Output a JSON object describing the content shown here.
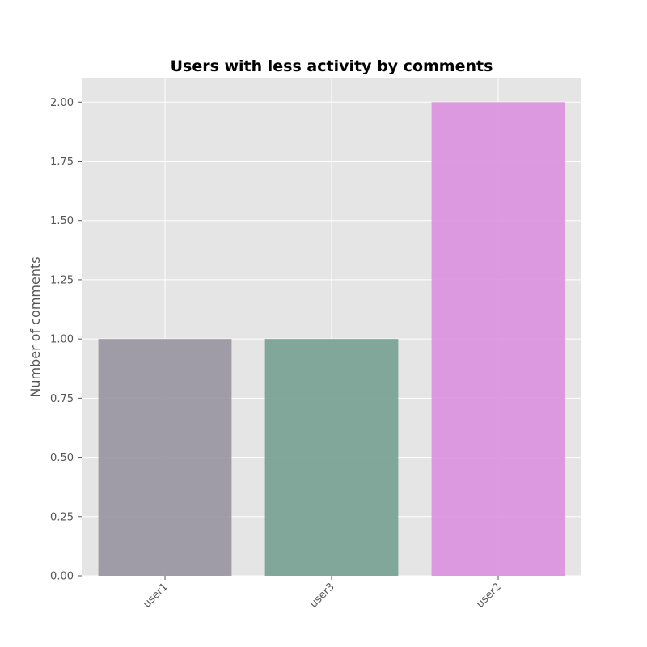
{
  "chart_data": {
    "type": "bar",
    "title": "Users with less activity by comments",
    "xlabel": "",
    "ylabel": "Number of comments",
    "categories": [
      "user1",
      "user3",
      "user2"
    ],
    "values": [
      1,
      1,
      2
    ],
    "bar_colors": [
      "#9a96a2",
      "#77a294",
      "#dc93df"
    ],
    "ylim": [
      0,
      2.1
    ],
    "yticks": [
      0.0,
      0.25,
      0.5,
      0.75,
      1.0,
      1.25,
      1.5,
      1.75,
      2.0
    ],
    "ytick_labels": [
      "0.00",
      "0.25",
      "0.50",
      "0.75",
      "1.00",
      "1.25",
      "1.50",
      "1.75",
      "2.00"
    ],
    "grid": true,
    "plot_background": "#e5e5e5",
    "grid_color": "#ffffff"
  }
}
